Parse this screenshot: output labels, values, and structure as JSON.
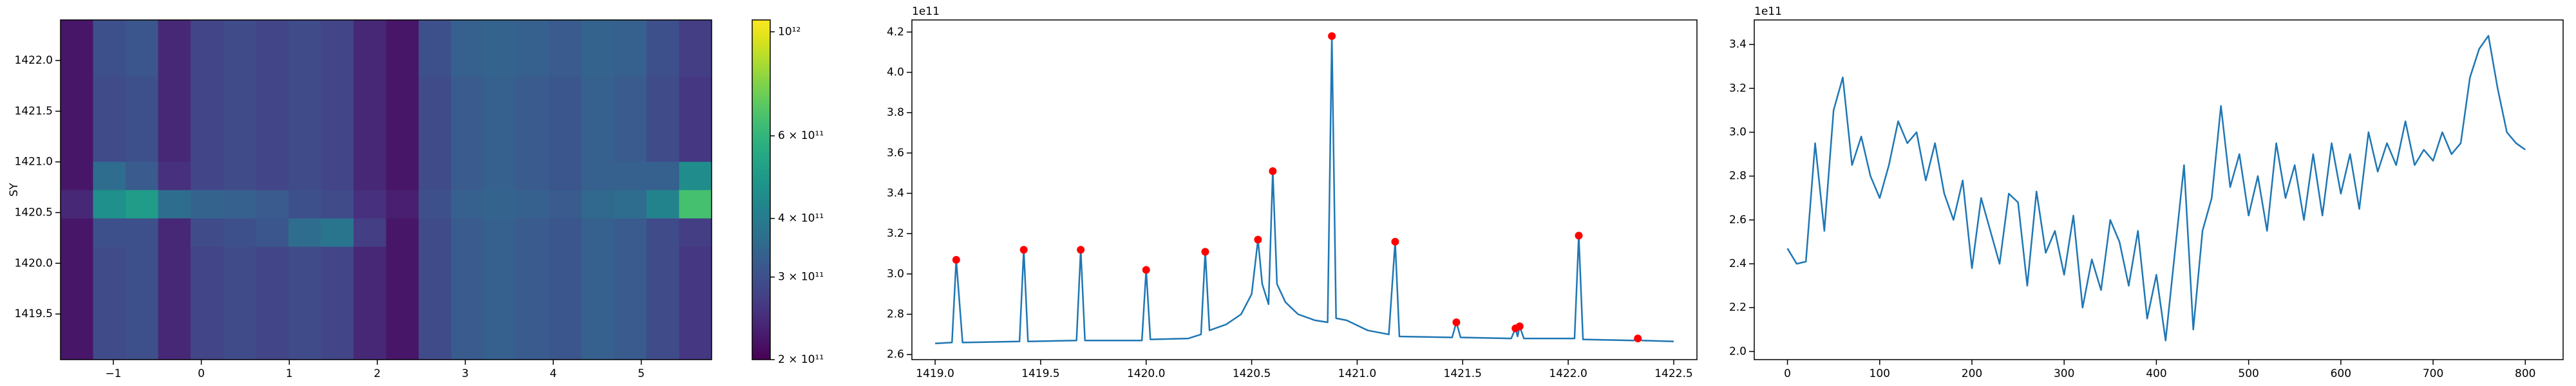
{
  "chart_data": [
    {
      "type": "heatmap",
      "y_label": "SY",
      "xlim": [
        -1.6,
        5.8
      ],
      "ylim": [
        1419.05,
        1422.4
      ],
      "xticks": [
        {
          "value": -1,
          "label": "−1"
        },
        0,
        1,
        2,
        3,
        4,
        5
      ],
      "yticks": [
        1419.5,
        {
          "value": 1420,
          "label": "1420.0"
        },
        1420.5,
        {
          "value": 1421,
          "label": "1421.0"
        },
        1421.5,
        {
          "value": 1422,
          "label": "1422.0"
        }
      ],
      "colorscale": "viridis",
      "zscale": "log",
      "zlim": [
        200000000000.0,
        1060000000000.0
      ],
      "zticks": [
        {
          "value": 200000000000.0,
          "label": "2 × 10¹¹"
        },
        {
          "value": 300000000000.0,
          "label": "3 × 10¹¹"
        },
        {
          "value": 400000000000.0,
          "label": "4 × 10¹¹"
        },
        {
          "value": 600000000000.0,
          "label": "6 × 10¹¹"
        },
        {
          "value": 1000000000000.0,
          "label": "10¹²"
        }
      ],
      "z": [
        [
          220000000000.0,
          290000000000.0,
          300000000000.0,
          240000000000.0,
          280000000000.0,
          290000000000.0,
          280000000000.0,
          290000000000.0,
          280000000000.0,
          240000000000.0,
          220000000000.0,
          290000000000.0,
          320000000000.0,
          330000000000.0,
          320000000000.0,
          310000000000.0,
          330000000000.0,
          320000000000.0,
          290000000000.0,
          260000000000.0
        ],
        [
          220000000000.0,
          290000000000.0,
          300000000000.0,
          240000000000.0,
          280000000000.0,
          290000000000.0,
          280000000000.0,
          290000000000.0,
          280000000000.0,
          240000000000.0,
          220000000000.0,
          290000000000.0,
          320000000000.0,
          330000000000.0,
          320000000000.0,
          310000000000.0,
          330000000000.0,
          320000000000.0,
          290000000000.0,
          260000000000.0
        ],
        [
          220000000000.0,
          290000000000.0,
          300000000000.0,
          240000000000.0,
          280000000000.0,
          290000000000.0,
          280000000000.0,
          290000000000.0,
          280000000000.0,
          240000000000.0,
          220000000000.0,
          290000000000.0,
          320000000000.0,
          330000000000.0,
          320000000000.0,
          310000000000.0,
          330000000000.0,
          320000000000.0,
          290000000000.0,
          260000000000.0
        ],
        [
          220000000000.0,
          290000000000.0,
          300000000000.0,
          240000000000.0,
          280000000000.0,
          290000000000.0,
          280000000000.0,
          290000000000.0,
          280000000000.0,
          240000000000.0,
          220000000000.0,
          290000000000.0,
          320000000000.0,
          330000000000.0,
          320000000000.0,
          310000000000.0,
          330000000000.0,
          320000000000.0,
          290000000000.0,
          260000000000.0
        ],
        [
          220000000000.0,
          300000000000.0,
          300000000000.0,
          240000000000.0,
          290000000000.0,
          300000000000.0,
          310000000000.0,
          360000000000.0,
          380000000000.0,
          270000000000.0,
          220000000000.0,
          290000000000.0,
          320000000000.0,
          330000000000.0,
          320000000000.0,
          310000000000.0,
          330000000000.0,
          320000000000.0,
          290000000000.0,
          270000000000.0
        ],
        [
          240000000000.0,
          460000000000.0,
          500000000000.0,
          360000000000.0,
          340000000000.0,
          330000000000.0,
          320000000000.0,
          300000000000.0,
          290000000000.0,
          250000000000.0,
          230000000000.0,
          300000000000.0,
          330000000000.0,
          340000000000.0,
          330000000000.0,
          320000000000.0,
          350000000000.0,
          360000000000.0,
          420000000000.0,
          650000000000.0
        ],
        [
          220000000000.0,
          360000000000.0,
          320000000000.0,
          250000000000.0,
          280000000000.0,
          290000000000.0,
          280000000000.0,
          290000000000.0,
          280000000000.0,
          240000000000.0,
          220000000000.0,
          290000000000.0,
          320000000000.0,
          330000000000.0,
          320000000000.0,
          310000000000.0,
          330000000000.0,
          330000000000.0,
          330000000000.0,
          450000000000.0
        ],
        [
          220000000000.0,
          290000000000.0,
          300000000000.0,
          240000000000.0,
          280000000000.0,
          290000000000.0,
          280000000000.0,
          290000000000.0,
          280000000000.0,
          240000000000.0,
          220000000000.0,
          290000000000.0,
          320000000000.0,
          330000000000.0,
          320000000000.0,
          310000000000.0,
          330000000000.0,
          320000000000.0,
          290000000000.0,
          260000000000.0
        ],
        [
          220000000000.0,
          290000000000.0,
          300000000000.0,
          240000000000.0,
          280000000000.0,
          290000000000.0,
          280000000000.0,
          290000000000.0,
          280000000000.0,
          240000000000.0,
          220000000000.0,
          290000000000.0,
          320000000000.0,
          330000000000.0,
          320000000000.0,
          310000000000.0,
          330000000000.0,
          320000000000.0,
          290000000000.0,
          260000000000.0
        ],
        [
          220000000000.0,
          290000000000.0,
          300000000000.0,
          240000000000.0,
          280000000000.0,
          290000000000.0,
          280000000000.0,
          290000000000.0,
          280000000000.0,
          240000000000.0,
          220000000000.0,
          290000000000.0,
          320000000000.0,
          330000000000.0,
          320000000000.0,
          310000000000.0,
          330000000000.0,
          320000000000.0,
          290000000000.0,
          260000000000.0
        ],
        [
          220000000000.0,
          300000000000.0,
          310000000000.0,
          240000000000.0,
          280000000000.0,
          290000000000.0,
          280000000000.0,
          290000000000.0,
          280000000000.0,
          240000000000.0,
          220000000000.0,
          300000000000.0,
          330000000000.0,
          340000000000.0,
          330000000000.0,
          320000000000.0,
          340000000000.0,
          330000000000.0,
          300000000000.0,
          270000000000.0
        ],
        [
          220000000000.0,
          300000000000.0,
          310000000000.0,
          240000000000.0,
          280000000000.0,
          290000000000.0,
          280000000000.0,
          290000000000.0,
          280000000000.0,
          240000000000.0,
          220000000000.0,
          300000000000.0,
          330000000000.0,
          340000000000.0,
          330000000000.0,
          320000000000.0,
          340000000000.0,
          330000000000.0,
          300000000000.0,
          270000000000.0
        ]
      ]
    },
    {
      "type": "line",
      "offset_label": "1e11",
      "xlim": [
        1418.89,
        1422.61
      ],
      "ylim": [
        2.575,
        4.26
      ],
      "xticks": [
        {
          "value": 1419,
          "label": "1419.0"
        },
        1419.5,
        {
          "value": 1420,
          "label": "1420.0"
        },
        1420.5,
        {
          "value": 1421,
          "label": "1421.0"
        },
        1421.5,
        {
          "value": 1422,
          "label": "1422.0"
        },
        1422.5
      ],
      "yticks": [
        2.6,
        2.8,
        {
          "value": 3,
          "label": "3.0"
        },
        3.2,
        3.4,
        3.6,
        3.8,
        {
          "value": 4,
          "label": "4.0"
        },
        4.2
      ],
      "series": [
        {
          "style": "line",
          "color": "#1f77b4",
          "x": [
            1419.0,
            1419.08,
            1419.1,
            1419.13,
            1419.4,
            1419.42,
            1419.44,
            1419.67,
            1419.69,
            1419.71,
            1419.98,
            1420.0,
            1420.02,
            1420.2,
            1420.26,
            1420.28,
            1420.3,
            1420.38,
            1420.45,
            1420.5,
            1420.53,
            1420.55,
            1420.58,
            1420.6,
            1420.62,
            1420.66,
            1420.72,
            1420.8,
            1420.86,
            1420.88,
            1420.9,
            1420.95,
            1421.05,
            1421.15,
            1421.18,
            1421.2,
            1421.45,
            1421.47,
            1421.49,
            1421.73,
            1421.75,
            1421.76,
            1421.77,
            1421.79,
            1422.03,
            1422.05,
            1422.07,
            1422.31,
            1422.33,
            1422.35,
            1422.5
          ],
          "values": [
            2.655,
            2.66,
            3.07,
            2.66,
            2.665,
            3.12,
            2.665,
            2.67,
            3.12,
            2.67,
            2.67,
            3.02,
            2.675,
            2.68,
            2.7,
            3.11,
            2.72,
            2.75,
            2.8,
            2.9,
            3.17,
            2.95,
            2.85,
            3.51,
            2.95,
            2.86,
            2.8,
            2.77,
            2.76,
            4.18,
            2.78,
            2.77,
            2.72,
            2.7,
            3.16,
            2.69,
            2.685,
            2.76,
            2.685,
            2.68,
            2.73,
            2.69,
            2.74,
            2.68,
            2.68,
            3.19,
            2.675,
            2.67,
            2.68,
            2.67,
            2.665
          ]
        },
        {
          "style": "markers",
          "color": "#ff0000",
          "x": [
            1419.1,
            1419.42,
            1419.69,
            1420.0,
            1420.28,
            1420.53,
            1420.6,
            1420.88,
            1421.18,
            1421.47,
            1421.75,
            1421.77,
            1422.05,
            1422.33
          ],
          "values": [
            3.07,
            3.12,
            3.12,
            3.02,
            3.11,
            3.17,
            3.51,
            4.18,
            3.16,
            2.76,
            2.73,
            2.74,
            3.19,
            2.68
          ]
        }
      ]
    },
    {
      "type": "line",
      "offset_label": "1e11",
      "xlim": [
        -36,
        841
      ],
      "ylim": [
        1.963,
        3.512
      ],
      "xticks": [
        0,
        100,
        200,
        300,
        400,
        500,
        600,
        700,
        800
      ],
      "yticks": [
        {
          "value": 2,
          "label": "2.0"
        },
        2.2,
        2.4,
        2.6,
        2.8,
        {
          "value": 3,
          "label": "3.0"
        },
        3.2,
        3.4
      ],
      "series": [
        {
          "style": "line",
          "color": "#1f77b4",
          "x": [
            0,
            10,
            20,
            30,
            40,
            50,
            60,
            70,
            80,
            90,
            100,
            110,
            120,
            130,
            140,
            150,
            160,
            170,
            180,
            190,
            200,
            210,
            220,
            230,
            240,
            250,
            260,
            270,
            280,
            290,
            300,
            310,
            320,
            330,
            340,
            350,
            360,
            370,
            380,
            390,
            400,
            410,
            420,
            430,
            440,
            450,
            460,
            470,
            480,
            490,
            500,
            510,
            520,
            530,
            540,
            550,
            560,
            570,
            580,
            590,
            600,
            610,
            620,
            630,
            640,
            650,
            660,
            670,
            680,
            690,
            700,
            710,
            720,
            730,
            740,
            750,
            760,
            770,
            780,
            790,
            800
          ],
          "values": [
            2.47,
            2.4,
            2.41,
            2.95,
            2.55,
            3.1,
            3.25,
            2.85,
            2.98,
            2.8,
            2.7,
            2.85,
            3.05,
            2.95,
            3.0,
            2.78,
            2.95,
            2.72,
            2.6,
            2.78,
            2.38,
            2.7,
            2.55,
            2.4,
            2.72,
            2.68,
            2.3,
            2.73,
            2.45,
            2.55,
            2.35,
            2.62,
            2.2,
            2.42,
            2.28,
            2.6,
            2.5,
            2.3,
            2.55,
            2.15,
            2.35,
            2.05,
            2.45,
            2.85,
            2.1,
            2.55,
            2.7,
            3.12,
            2.75,
            2.9,
            2.62,
            2.8,
            2.55,
            2.95,
            2.7,
            2.85,
            2.6,
            2.9,
            2.62,
            2.95,
            2.72,
            2.9,
            2.65,
            3.0,
            2.82,
            2.95,
            2.85,
            3.05,
            2.85,
            2.92,
            2.87,
            3.0,
            2.9,
            2.95,
            3.25,
            3.38,
            3.44,
            3.2,
            3.0,
            2.95,
            2.92
          ]
        }
      ]
    }
  ]
}
